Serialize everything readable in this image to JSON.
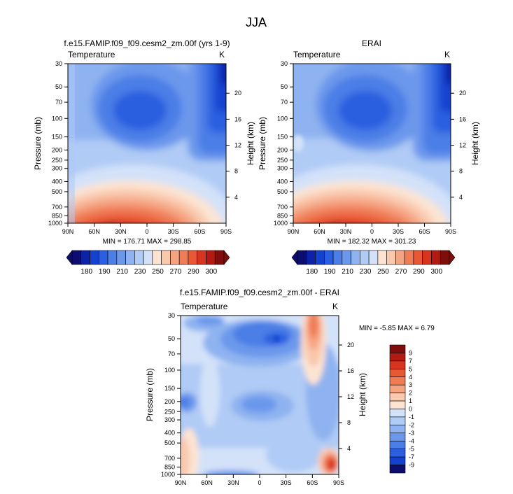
{
  "page": {
    "season": "JJA"
  },
  "colors": {
    "levels": [
      "#0d0d70",
      "#0c22a8",
      "#1342cf",
      "#2b5fe0",
      "#4b7ee6",
      "#6c98ec",
      "#8fb3f0",
      "#b0cbf5",
      "#d3e2f9",
      "#fde4d2",
      "#f9c8ad",
      "#f5a482",
      "#f07c56",
      "#e95834",
      "#d8351e",
      "#b31a12",
      "#7e0d0b"
    ]
  },
  "chart_data": [
    {
      "id": "model",
      "type": "heatmap",
      "title": "f.e15.FAMIP.f09_f09.cesm2_zm.00f (yrs 1-9)",
      "variable_label": "Temperature",
      "units": "K",
      "ylabel": "Pressure (mb)",
      "y2label": "Height (km)",
      "x_ticks": [
        "90N",
        "60N",
        "30N",
        "0",
        "30S",
        "60S",
        "90S"
      ],
      "x_values": [
        90,
        60,
        30,
        0,
        -30,
        -60,
        -90
      ],
      "p_ticks": [
        "30",
        "50",
        "70",
        "100",
        "150",
        "200",
        "250",
        "300",
        "400",
        "500",
        "700",
        "850",
        "1000"
      ],
      "p_values": [
        30,
        50,
        70,
        100,
        150,
        200,
        250,
        300,
        400,
        500,
        700,
        850,
        1000
      ],
      "h_ticks": [
        "20",
        "16",
        "12",
        "8",
        "4"
      ],
      "h_values": [
        20,
        16,
        12,
        8,
        4
      ],
      "min_max_text": "MIN = 176.71   MAX = 298.85",
      "min": 176.71,
      "max": 298.85,
      "contour_levels": [
        180,
        190,
        200,
        210,
        220,
        230,
        240,
        250,
        260,
        270,
        280,
        290,
        300
      ],
      "colorbar_labels": [
        "180",
        "190",
        "210",
        "230",
        "250",
        "270",
        "290",
        "300"
      ]
    },
    {
      "id": "obs",
      "type": "heatmap",
      "title": "ERAI",
      "variable_label": "Temperature",
      "units": "K",
      "ylabel": "Pressure (mb)",
      "y2label": "Height (km)",
      "x_ticks": [
        "90N",
        "60N",
        "30N",
        "0",
        "30S",
        "60S",
        "90S"
      ],
      "x_values": [
        90,
        60,
        30,
        0,
        -30,
        -60,
        -90
      ],
      "p_ticks": [
        "30",
        "50",
        "70",
        "100",
        "150",
        "200",
        "250",
        "300",
        "400",
        "500",
        "700",
        "850",
        "1000"
      ],
      "p_values": [
        30,
        50,
        70,
        100,
        150,
        200,
        250,
        300,
        400,
        500,
        700,
        850,
        1000
      ],
      "h_ticks": [
        "20",
        "16",
        "12",
        "8",
        "4"
      ],
      "h_values": [
        20,
        16,
        12,
        8,
        4
      ],
      "min_max_text": "MIN = 182.32   MAX = 301.23",
      "min": 182.32,
      "max": 301.23,
      "contour_levels": [
        180,
        190,
        200,
        210,
        220,
        230,
        240,
        250,
        260,
        270,
        280,
        290,
        300
      ],
      "colorbar_labels": [
        "180",
        "190",
        "210",
        "230",
        "250",
        "270",
        "290",
        "300"
      ]
    },
    {
      "id": "diff",
      "type": "heatmap",
      "title": "f.e15.FAMIP.f09_f09.cesm2_zm.00f - ERAI",
      "variable_label": "Temperature",
      "units": "K",
      "ylabel": "Pressure (mb)",
      "y2label": "Height (km)",
      "x_ticks": [
        "90N",
        "60N",
        "30N",
        "0",
        "30S",
        "60S",
        "90S"
      ],
      "x_values": [
        90,
        60,
        30,
        0,
        -30,
        -60,
        -90
      ],
      "p_ticks": [
        "30",
        "50",
        "70",
        "100",
        "150",
        "200",
        "250",
        "300",
        "400",
        "500",
        "700",
        "850",
        "1000"
      ],
      "p_values": [
        30,
        50,
        70,
        100,
        150,
        200,
        250,
        300,
        400,
        500,
        700,
        850,
        1000
      ],
      "h_ticks": [
        "20",
        "16",
        "12",
        "8",
        "4"
      ],
      "h_values": [
        20,
        16,
        12,
        8,
        4
      ],
      "min_max_text": "MIN = -5.85   MAX =  6.79",
      "min": -5.85,
      "max": 6.79,
      "contour_levels": [
        -9,
        -7,
        -5,
        -4,
        -3,
        -2,
        -1,
        0,
        1,
        2,
        3,
        4,
        5,
        7,
        9
      ],
      "colorbar_labels": [
        "9",
        "7",
        "5",
        "4",
        "3",
        "2",
        "1",
        "0",
        "-1",
        "-2",
        "-3",
        "-4",
        "-5",
        "-7",
        "-9"
      ]
    }
  ]
}
